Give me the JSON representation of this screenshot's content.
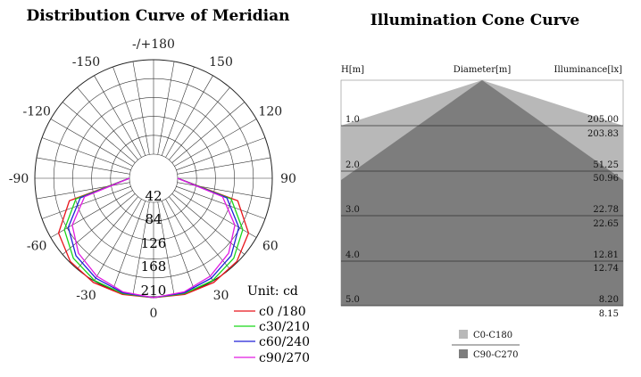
{
  "chart_data": [
    {
      "type": "polar",
      "title": "Distribution Curve of  Meridian",
      "unit_label": "Unit: cd",
      "angle_labels": [
        {
          "angle": 0,
          "text": "0"
        },
        {
          "angle": 30,
          "text": "30"
        },
        {
          "angle": 60,
          "text": "60"
        },
        {
          "angle": 90,
          "text": "90"
        },
        {
          "angle": 120,
          "text": "120"
        },
        {
          "angle": 150,
          "text": "150"
        },
        {
          "angle": 180,
          "text": "-/+180"
        },
        {
          "angle": -150,
          "text": "-150"
        },
        {
          "angle": -120,
          "text": "-120"
        },
        {
          "angle": -90,
          "text": "-90"
        },
        {
          "angle": -60,
          "text": "-60"
        },
        {
          "angle": -30,
          "text": "-30"
        }
      ],
      "radial_labels": [
        "42",
        "84",
        "126",
        "168",
        "210"
      ],
      "r_max": 210,
      "series": [
        {
          "name": "c0 /180",
          "color": "#e8141b",
          "gamma": [
            -90,
            -75,
            -60,
            -45,
            -30,
            -15,
            0,
            15,
            30,
            45,
            60,
            75,
            90
          ],
          "values": [
            0,
            140,
            190,
            208,
            214,
            214,
            212,
            214,
            214,
            208,
            190,
            140,
            0
          ]
        },
        {
          "name": "c30/210",
          "color": "#19d619",
          "gamma": [
            -90,
            -75,
            -60,
            -45,
            -30,
            -15,
            0,
            15,
            30,
            45,
            60,
            75,
            90
          ],
          "values": [
            0,
            125,
            175,
            198,
            209,
            212,
            212,
            212,
            209,
            198,
            175,
            125,
            0
          ]
        },
        {
          "name": "c60/240",
          "color": "#2121d8",
          "gamma": [
            -90,
            -75,
            -60,
            -45,
            -30,
            -15,
            0,
            15,
            30,
            45,
            60,
            75,
            90
          ],
          "values": [
            0,
            115,
            165,
            190,
            203,
            210,
            212,
            210,
            203,
            190,
            165,
            115,
            0
          ]
        },
        {
          "name": "c90/270",
          "color": "#e11ae1",
          "gamma": [
            -90,
            -75,
            -60,
            -45,
            -30,
            -15,
            0,
            15,
            30,
            45,
            60,
            75,
            90
          ],
          "values": [
            0,
            105,
            155,
            182,
            198,
            208,
            212,
            208,
            198,
            182,
            155,
            105,
            0
          ]
        }
      ]
    },
    {
      "type": "area",
      "title": "Illumination Cone Curve",
      "ylabel": "H[m]",
      "center_label": "Diameter[m]",
      "right_label": "Illuminance[lx]",
      "height_labels": [
        "1.0",
        "2.0",
        "3.0",
        "4.0",
        "5.0"
      ],
      "heights": [
        1.0,
        2.0,
        3.0,
        4.0,
        5.0
      ],
      "c0_illuminance": [
        "205.00",
        "51.25",
        "22.78",
        "12.81",
        "8.20"
      ],
      "c90_illuminance": [
        "203.83",
        "50.96",
        "22.65",
        "12.74",
        "8.15"
      ],
      "legend": [
        {
          "name": "C0-C180",
          "color": "#b8b8b8"
        },
        {
          "name": "C90-C270",
          "color": "#7d7d7d"
        }
      ]
    }
  ]
}
